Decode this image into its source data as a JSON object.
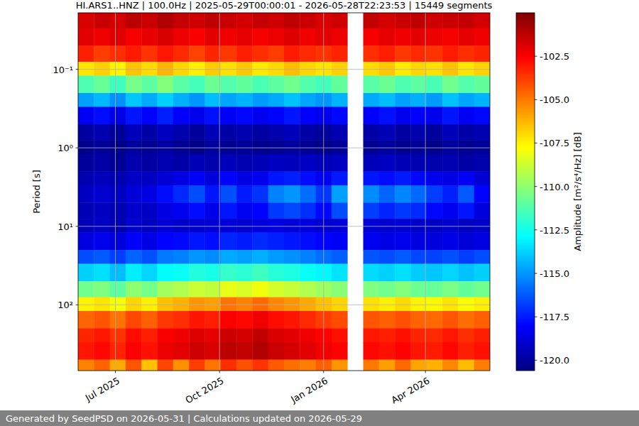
{
  "chart_data": {
    "type": "heatmap",
    "title": "HI.ARS1..HNZ | 100.0Hz | 2025-05-29T00:00:01 - 2026-05-28T22:23:53 | 15449 segments",
    "ylabel": "Period [s]",
    "footer": "Generated by SeedPSD on 2026-05-31 | Calculations updated on 2026-05-29",
    "log": "y",
    "grid": true,
    "xlim": [
      "2025-05-29",
      "2026-05-28"
    ],
    "xticks": [
      {
        "value": "2025-07-01",
        "label": "Jul 2025"
      },
      {
        "value": "2025-10-01",
        "label": "Oct 2025"
      },
      {
        "value": "2026-01-01",
        "label": "Jan 2026"
      },
      {
        "value": "2026-04-01",
        "label": "Apr 2026"
      }
    ],
    "ylim": [
      0.019,
      690
    ],
    "yticks": [
      {
        "value": 0.1,
        "label": "10⁻¹"
      },
      {
        "value": 1,
        "label": "10⁰"
      },
      {
        "value": 10,
        "label": "10¹"
      },
      {
        "value": 100,
        "label": "10²"
      }
    ],
    "x_edges": [
      "2025-05-29",
      "2025-06-12",
      "2025-06-26",
      "2025-07-10",
      "2025-07-24",
      "2025-08-07",
      "2025-08-21",
      "2025-09-04",
      "2025-09-18",
      "2025-10-02",
      "2025-10-16",
      "2025-10-30",
      "2025-11-13",
      "2025-11-27",
      "2025-12-11",
      "2025-12-25",
      "2026-01-08",
      "2026-01-22",
      "2026-02-05",
      "2026-02-19",
      "2026-03-05",
      "2026-03-19",
      "2026-04-02",
      "2026-04-16",
      "2026-04-30",
      "2026-05-14",
      "2026-05-28"
    ],
    "y_edges": [
      0.019,
      0.03,
      0.05,
      0.08,
      0.12,
      0.2,
      0.3,
      0.5,
      0.8,
      1.2,
      2,
      3,
      5,
      8,
      12,
      20,
      30,
      50,
      80,
      120,
      200,
      300,
      500,
      690
    ],
    "values": [
      [
        -101.8,
        -101.5,
        -101.7,
        -101.2,
        -101.5,
        -101.0,
        -101.4,
        -101.6,
        -101.3,
        -101.5,
        -101.7,
        -101.4,
        -101.6,
        -101.3,
        -101.5,
        -101.8,
        -101.6,
        null,
        -101.4,
        -101.7,
        -101.5,
        -101.3,
        -101.6,
        -101.5,
        -101.4,
        -101.7
      ],
      [
        -102.0,
        -102.3,
        -101.9,
        -102.4,
        -102.1,
        -101.8,
        -102.2,
        -102.5,
        -102.0,
        -102.3,
        -102.1,
        -102.4,
        -102.2,
        -101.9,
        -102.3,
        -102.0,
        -102.2,
        null,
        -102.4,
        -102.1,
        -102.3,
        -102.0,
        -102.2,
        -102.4,
        -102.1,
        -102.3
      ],
      [
        -103.2,
        -103.8,
        -103.5,
        -103.1,
        -103.6,
        -103.0,
        -103.4,
        -103.9,
        -103.3,
        -103.7,
        -103.2,
        -103.5,
        -103.8,
        -103.1,
        -103.4,
        -103.6,
        -103.3,
        null,
        -103.5,
        -103.2,
        -103.7,
        -103.4,
        -103.6,
        -103.1,
        -103.5,
        -103.3
      ],
      [
        -107.2,
        -106.8,
        -107.5,
        -106.5,
        -107.0,
        -106.2,
        -106.9,
        -107.4,
        -106.7,
        -107.1,
        -106.6,
        -107.3,
        -107.0,
        -106.4,
        -106.9,
        -107.2,
        -106.8,
        null,
        -107.0,
        -106.6,
        -107.3,
        -106.9,
        -107.1,
        -106.5,
        -107.2,
        -106.8
      ],
      [
        -111.3,
        -110.8,
        -111.6,
        -110.5,
        -111.0,
        -110.2,
        -111.1,
        -111.5,
        -110.7,
        -111.2,
        -110.9,
        -111.4,
        -111.0,
        -110.6,
        -111.2,
        -111.5,
        -110.9,
        null,
        -111.1,
        -110.7,
        -111.3,
        -111.0,
        -111.4,
        -110.6,
        -111.2,
        -110.9
      ],
      [
        -114.8,
        -114.3,
        -115.1,
        -114.0,
        -114.6,
        -113.8,
        -114.5,
        -115.0,
        -114.2,
        -114.7,
        -114.4,
        -114.9,
        -114.6,
        -114.1,
        -114.7,
        -115.0,
        -114.4,
        null,
        -114.6,
        -114.2,
        -114.8,
        -114.5,
        -114.9,
        -114.1,
        -114.7,
        -114.4
      ],
      [
        -118.2,
        -117.8,
        -118.5,
        -117.6,
        -118.0,
        -117.4,
        -118.1,
        -118.4,
        -117.7,
        -118.2,
        -117.9,
        -118.3,
        -118.0,
        -117.6,
        -118.1,
        -118.4,
        -117.9,
        null,
        -118.1,
        -117.7,
        -118.3,
        -118.0,
        -118.4,
        -117.6,
        -118.2,
        -117.9
      ],
      [
        -119.9,
        -119.6,
        -120.1,
        -119.4,
        -119.8,
        -119.3,
        -119.7,
        -120.0,
        -119.5,
        -119.8,
        -119.6,
        -119.9,
        -119.7,
        -119.4,
        -119.8,
        -120.0,
        -119.6,
        null,
        -119.8,
        -119.5,
        -119.9,
        -119.7,
        -120.0,
        -119.4,
        -119.8,
        -119.6
      ],
      [
        -120.3,
        -120.1,
        -120.4,
        -120.0,
        -120.2,
        -119.9,
        -120.2,
        -120.4,
        -120.0,
        -120.2,
        -120.1,
        -120.3,
        -120.2,
        -120.0,
        -120.2,
        -120.4,
        -120.1,
        null,
        -120.2,
        -120.0,
        -120.3,
        -120.1,
        -120.4,
        -120.0,
        -120.2,
        -120.1
      ],
      [
        -120.0,
        -119.8,
        -120.2,
        -119.7,
        -119.9,
        -119.6,
        -119.8,
        -119.5,
        -119.7,
        -119.4,
        -119.6,
        -119.5,
        -119.3,
        -119.4,
        -119.2,
        -119.5,
        -119.3,
        null,
        -119.4,
        -119.3,
        -119.5,
        -119.6,
        -119.7,
        -119.6,
        -119.8,
        -119.7
      ],
      [
        -119.6,
        -119.4,
        -119.7,
        -119.2,
        -119.3,
        -118.9,
        -118.6,
        -118.2,
        -118.8,
        -118.0,
        -118.6,
        -118.4,
        -117.6,
        -117.4,
        -117.8,
        -118.3,
        -117.5,
        null,
        -117.6,
        -117.8,
        -117.5,
        -117.9,
        -118.4,
        -118.6,
        -118.2,
        -118.9
      ],
      [
        -119.2,
        -119.0,
        -119.3,
        -118.8,
        -118.6,
        -117.8,
        -117.2,
        -116.5,
        -117.6,
        -116.4,
        -117.5,
        -117.0,
        -115.4,
        -115.0,
        -115.8,
        -116.9,
        -114.8,
        null,
        -115.2,
        -116.0,
        -115.3,
        -115.9,
        -116.8,
        -117.4,
        -116.2,
        -118.0
      ],
      [
        -119.5,
        -119.3,
        -119.6,
        -119.1,
        -119.2,
        -118.6,
        -118.3,
        -117.8,
        -118.5,
        -117.6,
        -118.3,
        -118.0,
        -116.9,
        -116.6,
        -117.1,
        -117.9,
        -116.5,
        null,
        -116.8,
        -117.3,
        -116.9,
        -117.2,
        -117.9,
        -118.3,
        -117.6,
        -118.7
      ],
      [
        -119.4,
        -119.2,
        -119.6,
        -119.0,
        -119.3,
        -118.9,
        -119.1,
        -119.0,
        -118.9,
        -118.8,
        -119.0,
        -118.7,
        -118.6,
        -118.8,
        -118.7,
        -119.0,
        -118.8,
        null,
        -118.9,
        -119.0,
        -118.9,
        -119.1,
        -119.2,
        -119.0,
        -119.3,
        -119.1
      ],
      [
        -118.6,
        -118.4,
        -118.8,
        -118.1,
        -118.5,
        -118.0,
        -117.9,
        -117.6,
        -117.8,
        -117.3,
        -117.5,
        -117.2,
        -117.4,
        -117.6,
        -117.8,
        -118.0,
        -118.2,
        null,
        -118.3,
        -118.5,
        -118.4,
        -118.6,
        -118.7,
        -118.5,
        -118.8,
        -118.6
      ],
      [
        -116.5,
        -116.2,
        -116.8,
        -116.0,
        -116.4,
        -115.6,
        -115.4,
        -115.0,
        -115.2,
        -114.6,
        -114.8,
        -114.5,
        -114.9,
        -115.1,
        -115.4,
        -115.8,
        -116.1,
        null,
        -116.3,
        -116.5,
        -116.2,
        -116.6,
        -116.7,
        -116.4,
        -116.8,
        -116.5
      ],
      [
        -113.8,
        -113.5,
        -114.2,
        -113.2,
        -113.7,
        -112.9,
        -112.7,
        -112.2,
        -112.4,
        -111.8,
        -112.0,
        -111.6,
        -112.1,
        -112.3,
        -112.7,
        -113.0,
        -113.4,
        null,
        -113.6,
        -113.8,
        -113.5,
        -113.9,
        -114.0,
        -113.7,
        -114.1,
        -113.8
      ],
      [
        -110.6,
        -110.3,
        -111.0,
        -110.0,
        -110.5,
        -109.6,
        -109.3,
        -108.8,
        -109.0,
        -108.2,
        -108.5,
        -108.0,
        -108.6,
        -108.9,
        -109.3,
        -109.7,
        -110.1,
        null,
        -110.3,
        -110.6,
        -110.2,
        -110.7,
        -110.8,
        -110.4,
        -110.9,
        -110.6
      ],
      [
        -107.5,
        -107.2,
        -107.9,
        -106.9,
        -107.4,
        -106.5,
        -106.2,
        -105.6,
        -105.8,
        -104.9,
        -105.2,
        -104.7,
        -105.3,
        -105.6,
        -106.0,
        -106.5,
        -106.9,
        null,
        -107.1,
        -107.4,
        -107.0,
        -107.5,
        -107.6,
        -107.2,
        -107.7,
        -107.4
      ],
      [
        -104.6,
        -104.3,
        -104.9,
        -104.0,
        -104.5,
        -103.7,
        -103.5,
        -103.0,
        -103.2,
        -102.5,
        -102.7,
        -102.3,
        -102.8,
        -103.0,
        -103.4,
        -103.8,
        -104.1,
        null,
        -104.3,
        -104.5,
        -104.2,
        -104.6,
        -104.7,
        -104.3,
        -104.8,
        -104.5
      ],
      [
        -103.3,
        -103.0,
        -103.6,
        -102.8,
        -103.2,
        -102.5,
        -102.3,
        -101.9,
        -102.1,
        -101.5,
        -101.7,
        -101.3,
        -101.8,
        -102.0,
        -102.3,
        -102.6,
        -102.9,
        null,
        -103.0,
        -103.2,
        -102.9,
        -103.3,
        -103.4,
        -103.0,
        -103.5,
        -103.2
      ],
      [
        -103.0,
        -102.7,
        -103.3,
        -102.5,
        -102.9,
        -102.2,
        -102.0,
        -101.6,
        -101.8,
        -101.2,
        -101.4,
        -101.0,
        -101.5,
        -101.7,
        -102.0,
        -102.3,
        -102.6,
        null,
        -102.7,
        -102.9,
        -102.6,
        -103.0,
        -103.1,
        -102.7,
        -103.2,
        -102.9
      ],
      [
        -105.2,
        -104.6,
        -106.0,
        -104.3,
        -106.5,
        -104.0,
        -105.5,
        -103.8,
        -104.9,
        -103.5,
        -104.2,
        -103.6,
        -104.4,
        -104.8,
        -105.1,
        -104.5,
        -105.6,
        null,
        -105.0,
        -105.8,
        -104.7,
        -105.9,
        -106.2,
        -105.3,
        -106.4,
        -105.1
      ]
    ],
    "colorbar": {
      "label": "Amplitude [m²/s⁴/Hz] [dB]",
      "range": [
        -120.6,
        -100.0
      ],
      "ticks": [
        {
          "value": -120,
          "label": "-120.0"
        },
        {
          "value": -117.5,
          "label": "-117.5"
        },
        {
          "value": -115,
          "label": "-115.0"
        },
        {
          "value": -112.5,
          "label": "-112.5"
        },
        {
          "value": -110,
          "label": "-110.0"
        },
        {
          "value": -107.5,
          "label": "-107.5"
        },
        {
          "value": -105,
          "label": "-105.0"
        },
        {
          "value": -102.5,
          "label": "-102.5"
        }
      ]
    }
  }
}
